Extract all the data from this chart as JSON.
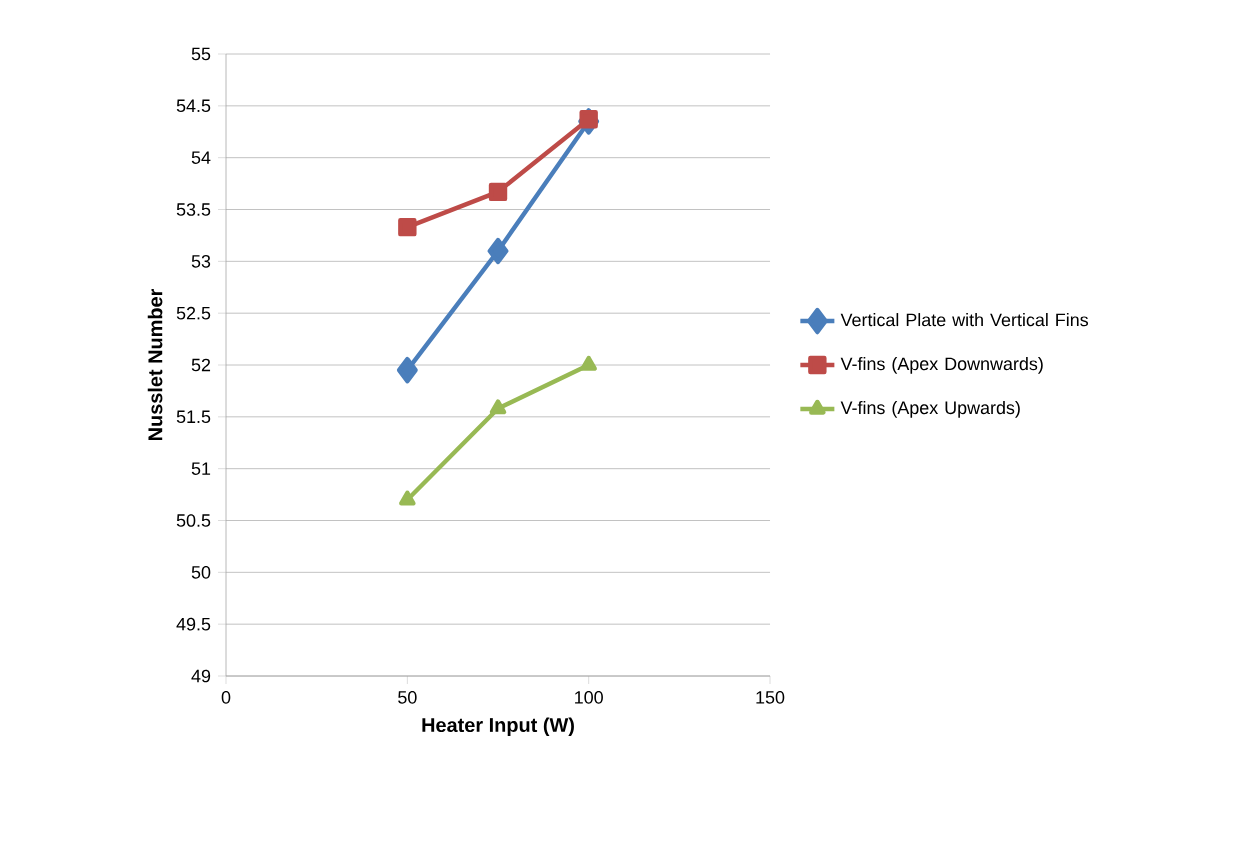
{
  "chart_data": {
    "type": "line",
    "xlabel": "Heater Input (W)",
    "ylabel": "Nusslet Number",
    "x": [
      50,
      75,
      100
    ],
    "series": [
      {
        "name": "Vertical Plate with Vertical Fins",
        "color": "#4a7ebb",
        "values": [
          51.95,
          53.1,
          54.35
        ],
        "marker": "diamond"
      },
      {
        "name": "V-fins (Apex Downwards)",
        "color": "#be4b48",
        "values": [
          53.33,
          53.67,
          54.37
        ],
        "marker": "square"
      },
      {
        "name": "V-fins (Apex Upwards)",
        "color": "#98b954",
        "values": [
          50.7,
          51.58,
          52.0
        ],
        "marker": "triangle"
      }
    ],
    "xlim": [
      0,
      150
    ],
    "xticks": [
      0,
      50,
      100,
      150
    ],
    "ylim": [
      49,
      55
    ],
    "yticks": [
      49,
      49.5,
      50,
      50.5,
      51,
      51.5,
      52,
      52.5,
      53,
      53.5,
      54,
      54.5,
      55
    ],
    "grid": "y",
    "legend": "right",
    "line_style": "solid"
  }
}
